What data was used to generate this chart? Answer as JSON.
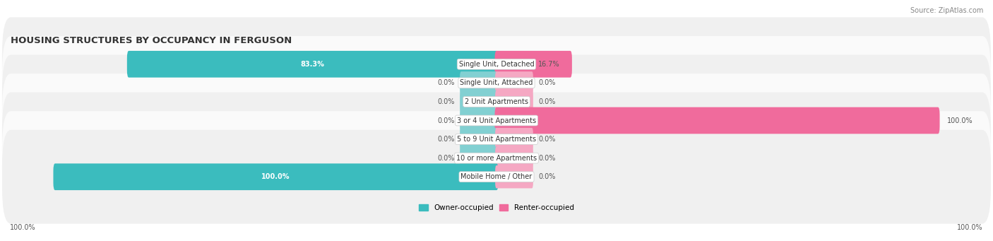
{
  "title": "HOUSING STRUCTURES BY OCCUPANCY IN FERGUSON",
  "source": "Source: ZipAtlas.com",
  "categories": [
    "Single Unit, Detached",
    "Single Unit, Attached",
    "2 Unit Apartments",
    "3 or 4 Unit Apartments",
    "5 to 9 Unit Apartments",
    "10 or more Apartments",
    "Mobile Home / Other"
  ],
  "owner_values": [
    83.3,
    0.0,
    0.0,
    0.0,
    0.0,
    0.0,
    100.0
  ],
  "renter_values": [
    16.7,
    0.0,
    0.0,
    100.0,
    0.0,
    0.0,
    0.0
  ],
  "owner_color": "#3bbcbe",
  "owner_stub_color": "#82d0d2",
  "renter_color": "#f06b9c",
  "renter_stub_color": "#f5a8c3",
  "row_bg_odd": "#f0f0f0",
  "row_bg_even": "#fafafa",
  "label_color": "#555555",
  "title_color": "#333333",
  "legend_owner": "Owner-occupied",
  "legend_renter": "Renter-occupied",
  "bar_height": 0.62,
  "stub_value": 8.0,
  "figsize": [
    14.06,
    3.41
  ],
  "dpi": 100,
  "xlim_left": -110,
  "xlim_right": 110,
  "x_axis_label_left": "100.0%",
  "x_axis_label_right": "100.0%"
}
